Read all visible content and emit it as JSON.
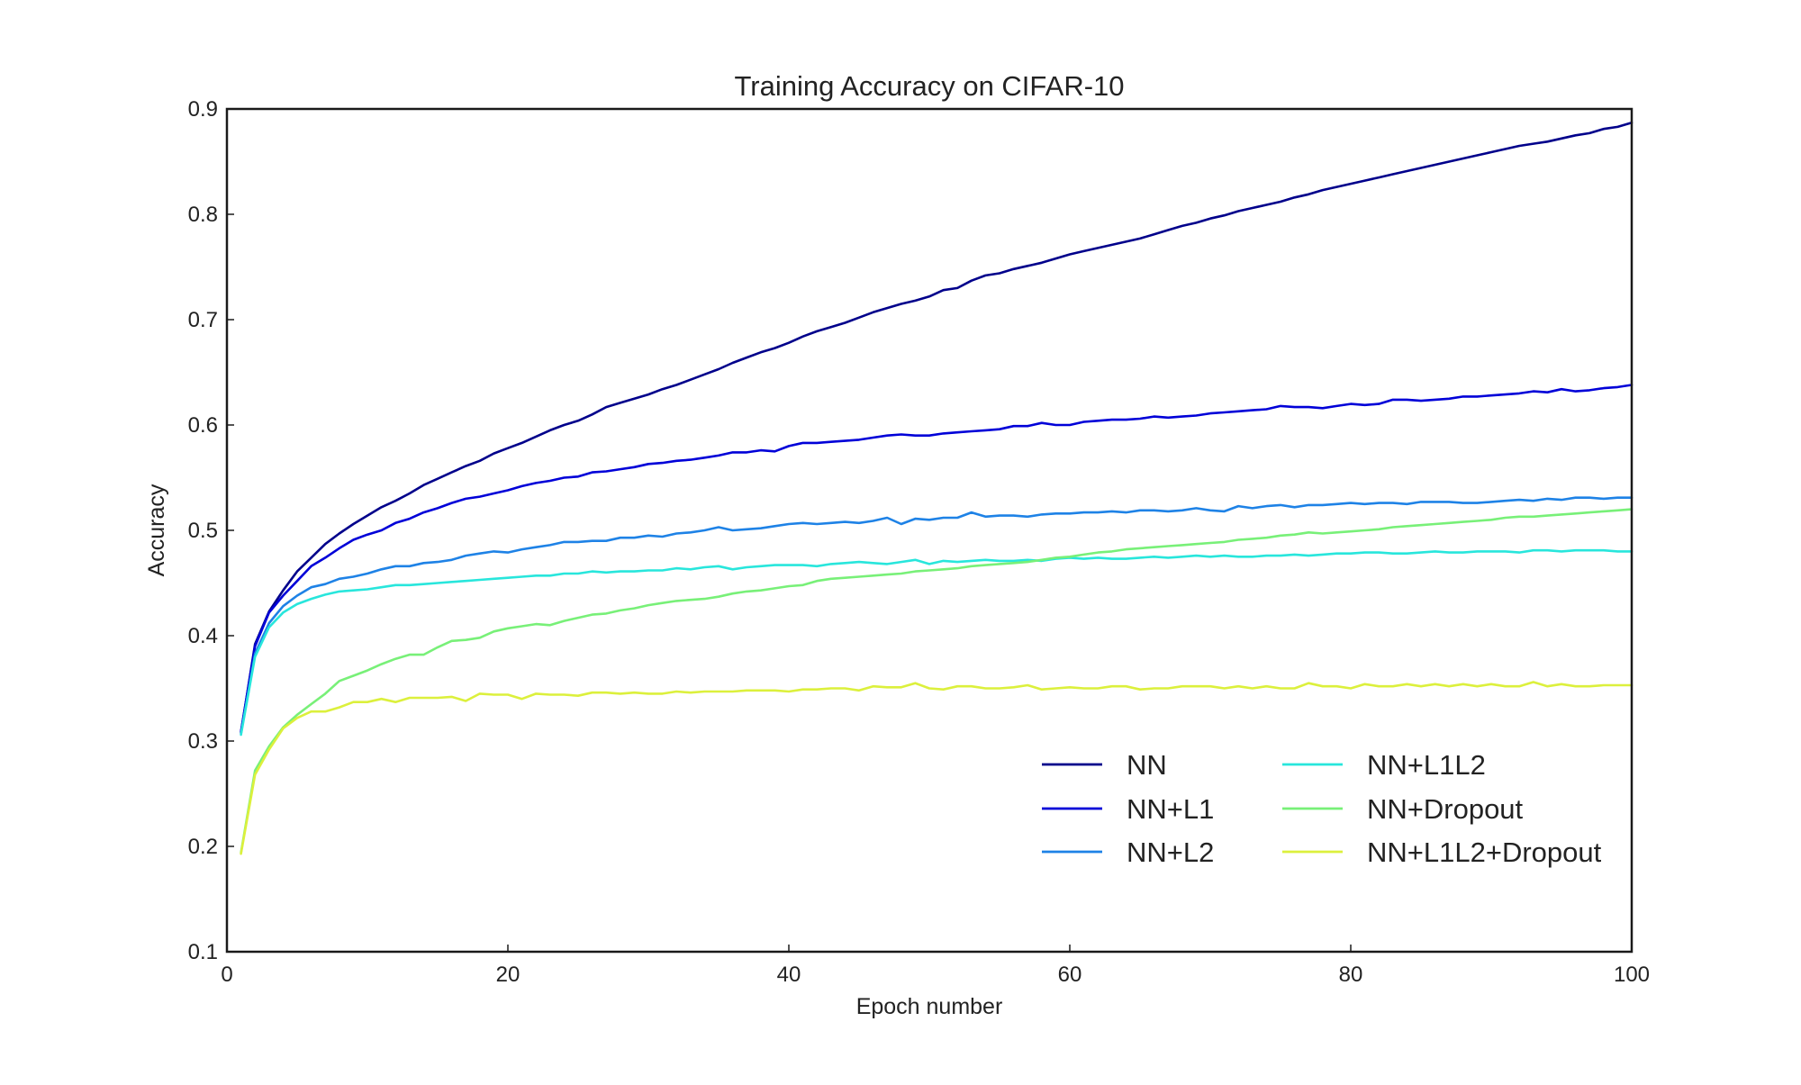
{
  "chart_data": {
    "type": "line",
    "title": "Training Accuracy on CIFAR-10",
    "xlabel": "Epoch number",
    "ylabel": "Accuracy",
    "xlim": [
      0,
      100
    ],
    "ylim": [
      0.1,
      0.9
    ],
    "x_ticks": [
      "0",
      "20",
      "40",
      "60",
      "80",
      "100"
    ],
    "y_ticks": [
      "0.1",
      "0.2",
      "0.3",
      "0.4",
      "0.5",
      "0.6",
      "0.7",
      "0.8",
      "0.9"
    ],
    "grid": false,
    "legend_position": "lower-right",
    "legend_columns": 2,
    "x": [
      1,
      2,
      3,
      4,
      5,
      6,
      7,
      8,
      9,
      10,
      11,
      12,
      13,
      14,
      15,
      16,
      17,
      18,
      19,
      20,
      21,
      22,
      23,
      24,
      25,
      26,
      27,
      28,
      29,
      30,
      31,
      32,
      33,
      34,
      35,
      36,
      37,
      38,
      39,
      40,
      41,
      42,
      43,
      44,
      45,
      46,
      47,
      48,
      49,
      50,
      51,
      52,
      53,
      54,
      55,
      56,
      57,
      58,
      59,
      60,
      61,
      62,
      63,
      64,
      65,
      66,
      67,
      68,
      69,
      70,
      71,
      72,
      73,
      74,
      75,
      76,
      77,
      78,
      79,
      80,
      81,
      82,
      83,
      84,
      85,
      86,
      87,
      88,
      89,
      90,
      91,
      92,
      93,
      94,
      95,
      96,
      97,
      98,
      99,
      100
    ],
    "series": [
      {
        "name": "NN",
        "color": "#00008b",
        "values": [
          0.308,
          0.392,
          0.423,
          0.443,
          0.461,
          0.474,
          0.487,
          0.497,
          0.506,
          0.514,
          0.522,
          0.528,
          0.535,
          0.543,
          0.549,
          0.555,
          0.561,
          0.566,
          0.573,
          0.578,
          0.583,
          0.589,
          0.595,
          0.6,
          0.604,
          0.61,
          0.617,
          0.621,
          0.625,
          0.629,
          0.634,
          0.638,
          0.643,
          0.648,
          0.653,
          0.659,
          0.664,
          0.669,
          0.673,
          0.678,
          0.684,
          0.689,
          0.693,
          0.697,
          0.702,
          0.707,
          0.711,
          0.715,
          0.718,
          0.722,
          0.728,
          0.73,
          0.737,
          0.742,
          0.744,
          0.748,
          0.751,
          0.754,
          0.758,
          0.762,
          0.765,
          0.768,
          0.771,
          0.774,
          0.777,
          0.781,
          0.785,
          0.789,
          0.792,
          0.796,
          0.799,
          0.803,
          0.806,
          0.809,
          0.812,
          0.816,
          0.819,
          0.823,
          0.826,
          0.829,
          0.832,
          0.835,
          0.838,
          0.841,
          0.844,
          0.847,
          0.85,
          0.853,
          0.856,
          0.859,
          0.862,
          0.865,
          0.867,
          0.869,
          0.872,
          0.875,
          0.877,
          0.881,
          0.883,
          0.887
        ]
      },
      {
        "name": "NN+L1",
        "color": "#0000d8",
        "values": [
          0.309,
          0.39,
          0.422,
          0.438,
          0.452,
          0.466,
          0.474,
          0.483,
          0.491,
          0.496,
          0.5,
          0.507,
          0.511,
          0.517,
          0.521,
          0.526,
          0.53,
          0.532,
          0.535,
          0.538,
          0.542,
          0.545,
          0.547,
          0.55,
          0.551,
          0.555,
          0.556,
          0.558,
          0.56,
          0.563,
          0.564,
          0.566,
          0.567,
          0.569,
          0.571,
          0.574,
          0.574,
          0.576,
          0.575,
          0.58,
          0.583,
          0.583,
          0.584,
          0.585,
          0.586,
          0.588,
          0.59,
          0.591,
          0.59,
          0.59,
          0.592,
          0.593,
          0.594,
          0.595,
          0.596,
          0.599,
          0.599,
          0.602,
          0.6,
          0.6,
          0.603,
          0.604,
          0.605,
          0.605,
          0.606,
          0.608,
          0.607,
          0.608,
          0.609,
          0.611,
          0.612,
          0.613,
          0.614,
          0.615,
          0.618,
          0.617,
          0.617,
          0.616,
          0.618,
          0.62,
          0.619,
          0.62,
          0.624,
          0.624,
          0.623,
          0.624,
          0.625,
          0.627,
          0.627,
          0.628,
          0.629,
          0.63,
          0.632,
          0.631,
          0.634,
          0.632,
          0.633,
          0.635,
          0.636,
          0.638
        ]
      },
      {
        "name": "NN+L2",
        "color": "#1e82e6",
        "values": [
          0.307,
          0.383,
          0.412,
          0.428,
          0.438,
          0.446,
          0.449,
          0.454,
          0.456,
          0.459,
          0.463,
          0.466,
          0.466,
          0.469,
          0.47,
          0.472,
          0.476,
          0.478,
          0.48,
          0.479,
          0.482,
          0.484,
          0.486,
          0.489,
          0.489,
          0.49,
          0.49,
          0.493,
          0.493,
          0.495,
          0.494,
          0.497,
          0.498,
          0.5,
          0.503,
          0.5,
          0.501,
          0.502,
          0.504,
          0.506,
          0.507,
          0.506,
          0.507,
          0.508,
          0.507,
          0.509,
          0.512,
          0.506,
          0.511,
          0.51,
          0.512,
          0.512,
          0.517,
          0.513,
          0.514,
          0.514,
          0.513,
          0.515,
          0.516,
          0.516,
          0.517,
          0.517,
          0.518,
          0.517,
          0.519,
          0.519,
          0.518,
          0.519,
          0.521,
          0.519,
          0.518,
          0.523,
          0.521,
          0.523,
          0.524,
          0.522,
          0.524,
          0.524,
          0.525,
          0.526,
          0.525,
          0.526,
          0.526,
          0.525,
          0.527,
          0.527,
          0.527,
          0.526,
          0.526,
          0.527,
          0.528,
          0.529,
          0.528,
          0.53,
          0.529,
          0.531,
          0.531,
          0.53,
          0.531,
          0.531
        ]
      },
      {
        "name": "NN+L1L2",
        "color": "#28e6dc",
        "values": [
          0.306,
          0.38,
          0.408,
          0.422,
          0.43,
          0.435,
          0.439,
          0.442,
          0.443,
          0.444,
          0.446,
          0.448,
          0.448,
          0.449,
          0.45,
          0.451,
          0.452,
          0.453,
          0.454,
          0.455,
          0.456,
          0.457,
          0.457,
          0.459,
          0.459,
          0.461,
          0.46,
          0.461,
          0.461,
          0.462,
          0.462,
          0.464,
          0.463,
          0.465,
          0.466,
          0.463,
          0.465,
          0.466,
          0.467,
          0.467,
          0.467,
          0.466,
          0.468,
          0.469,
          0.47,
          0.469,
          0.468,
          0.47,
          0.472,
          0.468,
          0.471,
          0.47,
          0.471,
          0.472,
          0.471,
          0.471,
          0.472,
          0.471,
          0.473,
          0.474,
          0.473,
          0.474,
          0.473,
          0.473,
          0.474,
          0.475,
          0.474,
          0.475,
          0.476,
          0.475,
          0.476,
          0.475,
          0.475,
          0.476,
          0.476,
          0.477,
          0.476,
          0.477,
          0.478,
          0.478,
          0.479,
          0.479,
          0.478,
          0.478,
          0.479,
          0.48,
          0.479,
          0.479,
          0.48,
          0.48,
          0.48,
          0.479,
          0.481,
          0.481,
          0.48,
          0.481,
          0.481,
          0.481,
          0.48,
          0.48
        ]
      },
      {
        "name": "NN+Dropout",
        "color": "#78f078",
        "values": [
          0.194,
          0.272,
          0.295,
          0.313,
          0.325,
          0.335,
          0.345,
          0.357,
          0.362,
          0.367,
          0.373,
          0.378,
          0.382,
          0.382,
          0.389,
          0.395,
          0.396,
          0.398,
          0.404,
          0.407,
          0.409,
          0.411,
          0.41,
          0.414,
          0.417,
          0.42,
          0.421,
          0.424,
          0.426,
          0.429,
          0.431,
          0.433,
          0.434,
          0.435,
          0.437,
          0.44,
          0.442,
          0.443,
          0.445,
          0.447,
          0.448,
          0.452,
          0.454,
          0.455,
          0.456,
          0.457,
          0.458,
          0.459,
          0.461,
          0.462,
          0.463,
          0.464,
          0.466,
          0.467,
          0.468,
          0.469,
          0.47,
          0.472,
          0.474,
          0.475,
          0.477,
          0.479,
          0.48,
          0.482,
          0.483,
          0.484,
          0.485,
          0.486,
          0.487,
          0.488,
          0.489,
          0.491,
          0.492,
          0.493,
          0.495,
          0.496,
          0.498,
          0.497,
          0.498,
          0.499,
          0.5,
          0.501,
          0.503,
          0.504,
          0.505,
          0.506,
          0.507,
          0.508,
          0.509,
          0.51,
          0.512,
          0.513,
          0.513,
          0.514,
          0.515,
          0.516,
          0.517,
          0.518,
          0.519,
          0.52
        ]
      },
      {
        "name": "NN+L1L2+Dropout",
        "color": "#dcf03c",
        "values": [
          0.193,
          0.268,
          0.292,
          0.312,
          0.322,
          0.328,
          0.328,
          0.332,
          0.337,
          0.337,
          0.34,
          0.337,
          0.341,
          0.341,
          0.341,
          0.342,
          0.338,
          0.345,
          0.344,
          0.344,
          0.34,
          0.345,
          0.344,
          0.344,
          0.343,
          0.346,
          0.346,
          0.345,
          0.346,
          0.345,
          0.345,
          0.347,
          0.346,
          0.347,
          0.347,
          0.347,
          0.348,
          0.348,
          0.348,
          0.347,
          0.349,
          0.349,
          0.35,
          0.35,
          0.348,
          0.352,
          0.351,
          0.351,
          0.355,
          0.35,
          0.349,
          0.352,
          0.352,
          0.35,
          0.35,
          0.351,
          0.353,
          0.349,
          0.35,
          0.351,
          0.35,
          0.35,
          0.352,
          0.352,
          0.349,
          0.35,
          0.35,
          0.352,
          0.352,
          0.352,
          0.35,
          0.352,
          0.35,
          0.352,
          0.35,
          0.35,
          0.355,
          0.352,
          0.352,
          0.35,
          0.354,
          0.352,
          0.352,
          0.354,
          0.352,
          0.354,
          0.352,
          0.354,
          0.352,
          0.354,
          0.352,
          0.352,
          0.356,
          0.352,
          0.354,
          0.352,
          0.352,
          0.353,
          0.353,
          0.353
        ]
      }
    ]
  }
}
